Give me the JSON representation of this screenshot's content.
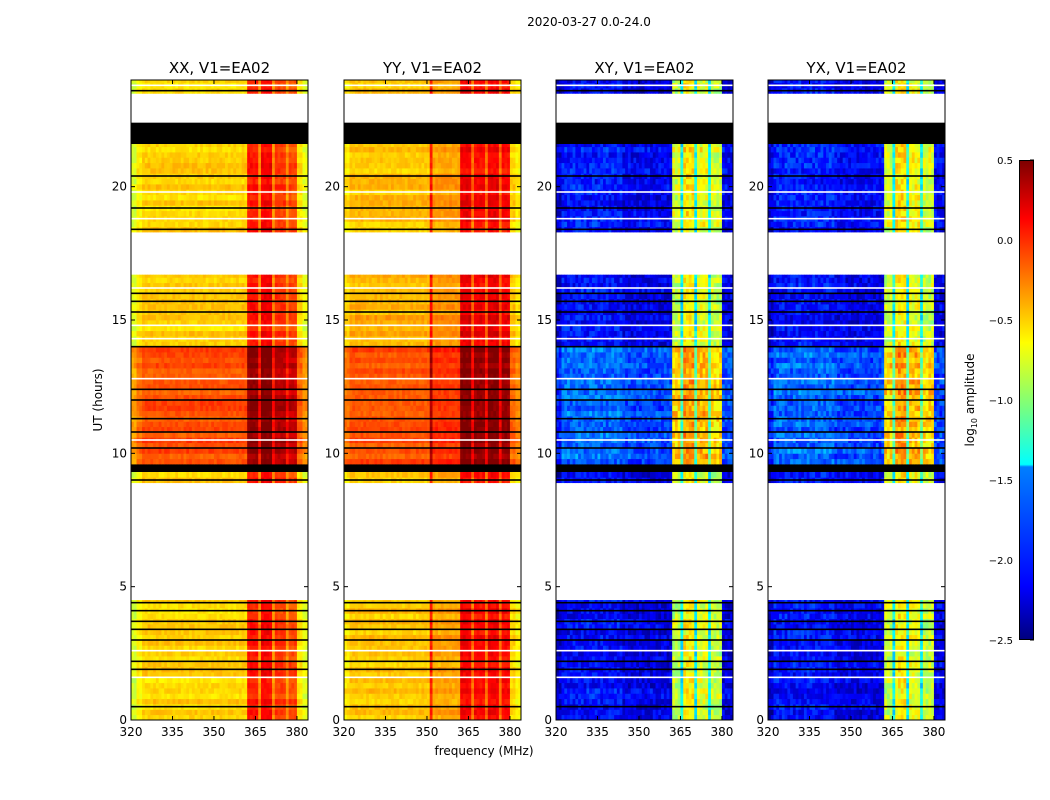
{
  "chart_data": {
    "type": "heatmap",
    "suptitle": "2020-03-27 0.0-24.0",
    "xlabel": "frequency (MHz)",
    "ylabel": "UT (hours)",
    "xlim": [
      320,
      384
    ],
    "ylim": [
      0,
      24
    ],
    "xticks": [
      "320",
      "335",
      "350",
      "365",
      "380"
    ],
    "yticks": [
      "0",
      "5",
      "10",
      "15",
      "20"
    ],
    "colorbar": {
      "label": "log10 amplitude",
      "label_main": "log",
      "label_sub": "10",
      "label_rest": " amplitude",
      "range": [
        -2.5,
        0.5
      ],
      "ticks": [
        "0.5",
        "0.0",
        "−0.5",
        "−1.0",
        "−1.5",
        "−2.0",
        "−2.5"
      ],
      "colormap": "jet"
    },
    "panels": [
      {
        "key": "XX",
        "title": "XX, V1=EA02",
        "spectrum": [
          [
            320,
            -0.75
          ],
          [
            322,
            -0.6
          ],
          [
            324,
            -0.5
          ],
          [
            362,
            0.05
          ],
          [
            366,
            -0.3
          ],
          [
            367,
            0.12
          ],
          [
            371,
            -0.3
          ],
          [
            372,
            -0.05
          ],
          [
            376,
            -0.3
          ],
          [
            377,
            -0.1
          ],
          [
            380,
            -0.55
          ],
          [
            382,
            -0.7
          ]
        ]
      },
      {
        "key": "YY",
        "title": "YY, V1=EA02",
        "spectrum": [
          [
            320,
            -0.55
          ],
          [
            322,
            -0.45
          ],
          [
            351,
            -0.42
          ],
          [
            351.5,
            0.05
          ],
          [
            352,
            -0.35
          ],
          [
            362,
            0.15
          ],
          [
            366,
            -0.2
          ],
          [
            367,
            0.1
          ],
          [
            371,
            -0.2
          ],
          [
            372,
            0.15
          ],
          [
            376,
            -0.2
          ],
          [
            377,
            0.1
          ],
          [
            380,
            -0.5
          ],
          [
            382,
            -0.6
          ]
        ]
      },
      {
        "key": "XY",
        "title": "XY, V1=EA02",
        "spectrum": [
          [
            320,
            -2.3
          ],
          [
            322,
            -2.1
          ],
          [
            335,
            -1.7
          ],
          [
            335.5,
            -2.1
          ],
          [
            344,
            -2.2
          ],
          [
            362,
            -0.8
          ],
          [
            365,
            -1.4
          ],
          [
            366,
            -0.6
          ],
          [
            370,
            -1.4
          ],
          [
            371,
            -0.7
          ],
          [
            375,
            -1.4
          ],
          [
            376,
            -0.8
          ],
          [
            380,
            -2.2
          ],
          [
            384,
            -2.3
          ]
        ]
      },
      {
        "key": "YX",
        "title": "YX, V1=EA02",
        "spectrum": [
          [
            320,
            -2.3
          ],
          [
            322,
            -2.1
          ],
          [
            335,
            -1.7
          ],
          [
            335.5,
            -2.1
          ],
          [
            344,
            -2.2
          ],
          [
            362,
            -0.8
          ],
          [
            365,
            -1.4
          ],
          [
            366,
            -0.6
          ],
          [
            370,
            -1.4
          ],
          [
            371,
            -0.7
          ],
          [
            375,
            -1.4
          ],
          [
            376,
            -0.8
          ],
          [
            380,
            -2.2
          ],
          [
            384,
            -2.3
          ]
        ]
      }
    ],
    "time_segments": [
      {
        "start": 0.0,
        "end": 4.5,
        "status": "data",
        "offset": {
          "XX": 0.0,
          "YY": 0.0,
          "XY": 0.0,
          "YX": 0.0
        }
      },
      {
        "start": 4.5,
        "end": 8.9,
        "status": "nodata"
      },
      {
        "start": 8.9,
        "end": 9.3,
        "status": "data",
        "offset": {
          "XX": 0.0,
          "YY": 0.0,
          "XY": 0.0,
          "YX": 0.0
        }
      },
      {
        "start": 9.3,
        "end": 9.6,
        "status": "flagged"
      },
      {
        "start": 9.6,
        "end": 14.0,
        "status": "data",
        "offset": {
          "XX": 0.4,
          "YY": 0.35,
          "XY": 0.3,
          "YX": 0.3
        }
      },
      {
        "start": 14.0,
        "end": 16.7,
        "status": "data",
        "offset": {
          "XX": 0.0,
          "YY": 0.05,
          "XY": 0.0,
          "YX": 0.0
        }
      },
      {
        "start": 16.7,
        "end": 18.3,
        "status": "nodata"
      },
      {
        "start": 18.3,
        "end": 21.6,
        "status": "data",
        "offset": {
          "XX": 0.0,
          "YY": 0.0,
          "XY": 0.05,
          "YX": 0.05
        }
      },
      {
        "start": 21.6,
        "end": 22.4,
        "status": "flagged"
      },
      {
        "start": 22.4,
        "end": 23.5,
        "status": "nodata"
      },
      {
        "start": 23.5,
        "end": 24.0,
        "status": "data",
        "offset": {
          "XX": 0.0,
          "YY": 0.0,
          "XY": 0.0,
          "YX": 0.0
        }
      }
    ],
    "flagged_lines_hours": [
      0.5,
      1.9,
      2.2,
      3.0,
      3.4,
      3.7,
      4.1,
      4.4,
      9.0,
      10.2,
      10.8,
      11.3,
      12.0,
      12.4,
      14.0,
      15.3,
      15.7,
      16.0,
      18.4,
      19.2,
      20.4,
      23.6
    ],
    "nodata_lines_hours": [
      1.6,
      2.6,
      10.5,
      12.8,
      14.3,
      14.8,
      16.2,
      18.8,
      19.8,
      23.8
    ]
  }
}
